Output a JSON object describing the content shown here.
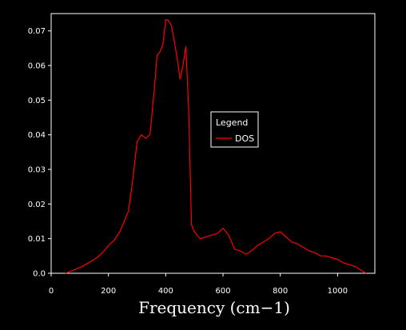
{
  "chart_data": {
    "type": "line",
    "title": "",
    "xlabel": "Frequency (cm−1)",
    "ylabel": "",
    "xlim": [
      0,
      1130
    ],
    "ylim": [
      0,
      0.075
    ],
    "x_ticks": [
      0,
      200,
      400,
      600,
      800,
      1000
    ],
    "x_tick_labels": [
      "0",
      "200",
      "400",
      "600",
      "800",
      "1000"
    ],
    "y_ticks": [
      0,
      0.01,
      0.02,
      0.03,
      0.04,
      0.05,
      0.06,
      0.07
    ],
    "y_tick_labels": [
      "0.0",
      "0.01",
      "0.02",
      "0.03",
      "0.04",
      "0.05",
      "0.06",
      "0.07"
    ],
    "grid": false,
    "legend": {
      "title": "Legend",
      "placement": "center-right"
    },
    "colors": {
      "background": "#000000",
      "axis": "#ffffff",
      "series": "#ff0000"
    },
    "series": [
      {
        "name": "DOS",
        "x": [
          50,
          80,
          110,
          140,
          160,
          180,
          200,
          220,
          240,
          255,
          270,
          285,
          300,
          315,
          330,
          345,
          360,
          370,
          380,
          390,
          400,
          410,
          420,
          430,
          440,
          450,
          460,
          470,
          480,
          490,
          500,
          520,
          540,
          560,
          580,
          600,
          620,
          640,
          660,
          680,
          700,
          720,
          740,
          760,
          780,
          800,
          820,
          840,
          860,
          880,
          900,
          920,
          940,
          960,
          980,
          1000,
          1020,
          1040,
          1060,
          1080,
          1100
        ],
        "y": [
          0.0,
          0.001,
          0.002,
          0.0035,
          0.0045,
          0.006,
          0.008,
          0.0095,
          0.012,
          0.015,
          0.018,
          0.027,
          0.038,
          0.04,
          0.039,
          0.04,
          0.053,
          0.063,
          0.064,
          0.066,
          0.0733,
          0.073,
          0.0715,
          0.067,
          0.062,
          0.056,
          0.06,
          0.0655,
          0.048,
          0.014,
          0.012,
          0.01,
          0.0105,
          0.011,
          0.0115,
          0.013,
          0.011,
          0.007,
          0.0065,
          0.0055,
          0.0065,
          0.008,
          0.009,
          0.01,
          0.0115,
          0.012,
          0.0105,
          0.009,
          0.0085,
          0.0075,
          0.0065,
          0.006,
          0.005,
          0.005,
          0.0045,
          0.004,
          0.003,
          0.0025,
          0.002,
          0.001,
          0.0
        ]
      }
    ]
  }
}
